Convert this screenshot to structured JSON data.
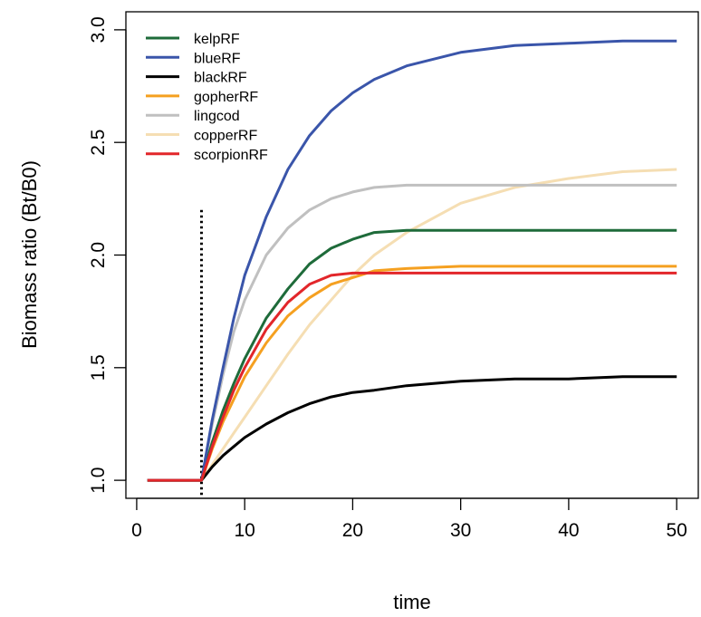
{
  "chart_data": {
    "type": "line",
    "title": "",
    "xlabel": "time",
    "ylabel": "Biomass ratio (Bt/B0)",
    "xlim": [
      -1,
      52
    ],
    "ylim": [
      0.92,
      3.08
    ],
    "x_ticks": [
      0,
      10,
      20,
      30,
      40,
      50
    ],
    "x_tick_labels": [
      "0",
      "10",
      "20",
      "30",
      "40",
      "50"
    ],
    "y_ticks": [
      1.0,
      1.5,
      2.0,
      2.5,
      3.0
    ],
    "y_tick_labels": [
      "1.0",
      "1.5",
      "2.0",
      "2.5",
      "3.0"
    ],
    "grid": false,
    "legend_position": "top-left",
    "vline": {
      "x": 6,
      "y_top": 2.2,
      "style": "dotted"
    },
    "x": [
      1,
      2,
      3,
      4,
      5,
      6,
      7,
      8,
      9,
      10,
      12,
      14,
      16,
      18,
      20,
      22,
      25,
      30,
      35,
      40,
      45,
      50
    ],
    "series": [
      {
        "name": "kelpRF",
        "color": "#1e6b3a",
        "values": [
          1.0,
          1.0,
          1.0,
          1.0,
          1.0,
          1.0,
          1.17,
          1.31,
          1.43,
          1.54,
          1.72,
          1.85,
          1.96,
          2.03,
          2.07,
          2.1,
          2.11,
          2.11,
          2.11,
          2.11,
          2.11,
          2.11
        ]
      },
      {
        "name": "blueRF",
        "color": "#3a55aa",
        "values": [
          1.0,
          1.0,
          1.0,
          1.0,
          1.0,
          1.0,
          1.27,
          1.5,
          1.72,
          1.91,
          2.17,
          2.38,
          2.53,
          2.64,
          2.72,
          2.78,
          2.84,
          2.9,
          2.93,
          2.94,
          2.95,
          2.95
        ]
      },
      {
        "name": "blackRF",
        "color": "#000000",
        "values": [
          1.0,
          1.0,
          1.0,
          1.0,
          1.0,
          1.0,
          1.06,
          1.11,
          1.15,
          1.19,
          1.25,
          1.3,
          1.34,
          1.37,
          1.39,
          1.4,
          1.42,
          1.44,
          1.45,
          1.45,
          1.46,
          1.46
        ]
      },
      {
        "name": "gopherRF",
        "color": "#f5a020",
        "values": [
          1.0,
          1.0,
          1.0,
          1.0,
          1.0,
          1.0,
          1.14,
          1.26,
          1.36,
          1.46,
          1.61,
          1.73,
          1.81,
          1.87,
          1.9,
          1.93,
          1.94,
          1.95,
          1.95,
          1.95,
          1.95,
          1.95
        ]
      },
      {
        "name": "lingcod",
        "color": "#c0c0c0",
        "values": [
          1.0,
          1.0,
          1.0,
          1.0,
          1.0,
          1.0,
          1.25,
          1.47,
          1.66,
          1.8,
          2.0,
          2.12,
          2.2,
          2.25,
          2.28,
          2.3,
          2.31,
          2.31,
          2.31,
          2.31,
          2.31,
          2.31
        ]
      },
      {
        "name": "copperRF",
        "color": "#f5deb3",
        "values": [
          1.0,
          1.0,
          1.0,
          1.0,
          1.0,
          1.0,
          1.07,
          1.14,
          1.21,
          1.28,
          1.42,
          1.56,
          1.69,
          1.8,
          1.91,
          2.0,
          2.1,
          2.23,
          2.3,
          2.34,
          2.37,
          2.38
        ]
      },
      {
        "name": "scorpionRF",
        "color": "#e2262a",
        "values": [
          1.0,
          1.0,
          1.0,
          1.0,
          1.0,
          1.0,
          1.15,
          1.28,
          1.4,
          1.5,
          1.67,
          1.79,
          1.87,
          1.91,
          1.92,
          1.92,
          1.92,
          1.92,
          1.92,
          1.92,
          1.92,
          1.92
        ]
      }
    ],
    "draw_order": [
      "copperRF",
      "lingcod",
      "blackRF",
      "gopherRF",
      "kelpRF",
      "blueRF",
      "scorpionRF"
    ]
  }
}
